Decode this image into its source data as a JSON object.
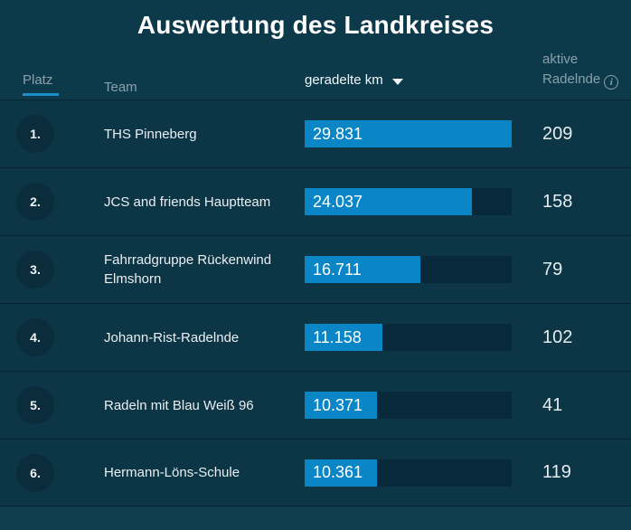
{
  "title": "Auswertung des Landkreises",
  "columns": {
    "platz": "Platz",
    "team": "Team",
    "km": "geradelte km",
    "active_line1": "aktive",
    "active_line2": "Radelnde"
  },
  "sort": {
    "column": "geradelte km",
    "direction": "desc"
  },
  "icons": {
    "sort_arrow": "triangle-down",
    "info": "i"
  },
  "colors": {
    "background": "#0d3a4b",
    "row_background": "#0c3545",
    "bar_fill": "#0a85c5",
    "bar_track": "#07293a",
    "accent_underline": "#1b8ecb",
    "header_gray": "#8ba0ab"
  },
  "km_max": 29831,
  "rows": [
    {
      "rank": "1.",
      "team": "THS Pinneberg",
      "km_display": "29.831",
      "km_value": 29831,
      "active": "209"
    },
    {
      "rank": "2.",
      "team": "JCS and friends Hauptteam",
      "km_display": "24.037",
      "km_value": 24037,
      "active": "158"
    },
    {
      "rank": "3.",
      "team": "Fahrradgruppe Rückenwind Elmshorn",
      "km_display": "16.711",
      "km_value": 16711,
      "active": "79"
    },
    {
      "rank": "4.",
      "team": "Johann-Rist-Radelnde",
      "km_display": "11.158",
      "km_value": 11158,
      "active": "102"
    },
    {
      "rank": "5.",
      "team": "Radeln mit Blau Weiß 96",
      "km_display": "10.371",
      "km_value": 10371,
      "active": "41"
    },
    {
      "rank": "6.",
      "team": "Hermann-Löns-Schule",
      "km_display": "10.361",
      "km_value": 10361,
      "active": "119"
    }
  ]
}
